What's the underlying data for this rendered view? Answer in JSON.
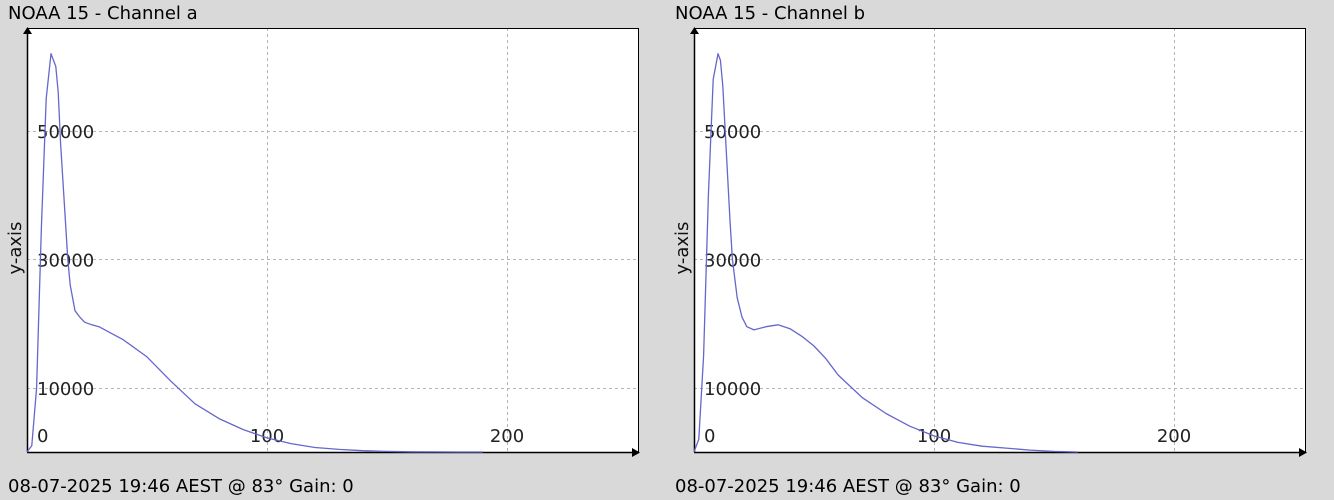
{
  "chart_data": [
    {
      "type": "line",
      "title": "NOAA 15 - Channel a",
      "footer": "08-07-2025 19:46 AEST @ 83° Gain: 0",
      "ylabel": "y-axis",
      "xlim": [
        0,
        255
      ],
      "ylim": [
        0,
        66000
      ],
      "x_ticks": [
        0,
        100,
        200
      ],
      "y_ticks": [
        10000,
        30000,
        50000
      ],
      "grid": true,
      "line_color": "#6666cc",
      "x": [
        0,
        2,
        4,
        6,
        8,
        10,
        12,
        13,
        14,
        15,
        16,
        17,
        18,
        20,
        22,
        24,
        27,
        30,
        35,
        40,
        50,
        60,
        70,
        80,
        90,
        100,
        110,
        120,
        130,
        140,
        150,
        160,
        170,
        180,
        190
      ],
      "y": [
        0,
        1000,
        10000,
        35000,
        55000,
        62000,
        60000,
        56000,
        48000,
        42000,
        36000,
        30000,
        26000,
        22000,
        21000,
        20200,
        19800,
        19500,
        18500,
        17500,
        14800,
        11000,
        7500,
        5200,
        3500,
        2200,
        1300,
        700,
        400,
        200,
        100,
        30,
        10,
        0,
        0
      ]
    },
    {
      "type": "line",
      "title": "NOAA 15 - Channel b",
      "footer": "08-07-2025 19:46 AEST @ 83° Gain: 0",
      "ylabel": "y-axis",
      "xlim": [
        0,
        255
      ],
      "ylim": [
        0,
        66000
      ],
      "x_ticks": [
        0,
        100,
        200
      ],
      "y_ticks": [
        10000,
        30000,
        50000
      ],
      "grid": true,
      "line_color": "#6666cc",
      "x": [
        0,
        2,
        4,
        6,
        8,
        10,
        11,
        12,
        13,
        14,
        15,
        16,
        18,
        20,
        22,
        25,
        30,
        35,
        40,
        45,
        50,
        55,
        60,
        70,
        80,
        90,
        100,
        110,
        120,
        130,
        140,
        150,
        160
      ],
      "y": [
        0,
        2000,
        15000,
        40000,
        58000,
        62000,
        61000,
        57000,
        50000,
        43000,
        36000,
        30000,
        24000,
        21000,
        19500,
        19000,
        19500,
        19800,
        19200,
        18000,
        16500,
        14500,
        12000,
        8500,
        6000,
        4000,
        2500,
        1500,
        900,
        600,
        300,
        100,
        0
      ]
    }
  ]
}
